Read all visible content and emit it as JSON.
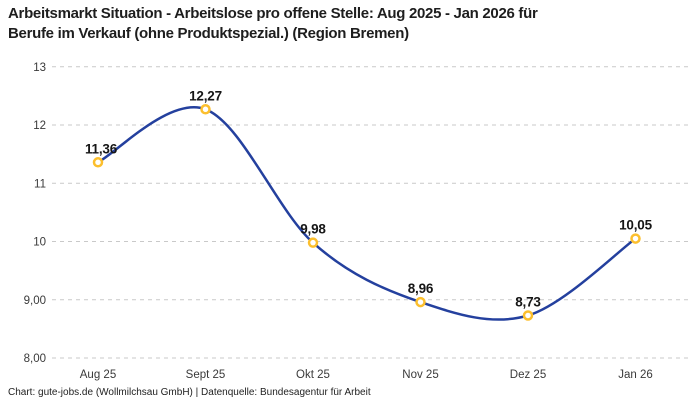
{
  "header": {
    "title_lines": [
      "Arbeitsmarkt Situation - Arbeitslose pro offene Stelle: Aug 2025 - Jan 2026 für",
      "Berufe im Verkauf (ohne Produktspezial.) (Region Bremen)"
    ]
  },
  "chart_data": {
    "type": "line",
    "title": "Arbeitsmarkt Situation - Arbeitslose pro offene Stelle: Aug 2025 - Jan 2026 für Berufe im Verkauf (ohne Produktspezial.) (Region Bremen)",
    "categories": [
      "Aug 25",
      "Sept 25",
      "Okt 25",
      "Nov 25",
      "Dez 25",
      "Jan 26"
    ],
    "values": [
      11.36,
      12.27,
      9.98,
      8.96,
      8.73,
      10.05
    ],
    "point_labels": [
      "11,36",
      "12,27",
      "9,98",
      "8,96",
      "8,73",
      "10,05"
    ],
    "y_ticks": [
      {
        "v": 8,
        "label": "8,00"
      },
      {
        "v": 9,
        "label": "9,00"
      },
      {
        "v": 10,
        "label": "10"
      },
      {
        "v": 11,
        "label": "11"
      },
      {
        "v": 12,
        "label": "12"
      },
      {
        "v": 13,
        "label": "13"
      }
    ],
    "ylim": [
      8,
      13
    ],
    "xlabel": "",
    "ylabel": "",
    "legend": "none",
    "grid": "horizontal-dashed",
    "curve": "smooth-spline",
    "colors": {
      "line": "#24409e",
      "marker_ring": "#fcbf2d",
      "marker_fill": "#ffffff",
      "grid": "#c9c9c9",
      "axis_tick_text": "#3a3a3a",
      "point_label_text": "#161616"
    }
  },
  "footer": {
    "text": "Chart: gute-jobs.de (Wollmilchsau GmbH) | Datenquelle: Bundesagentur für Arbeit"
  }
}
